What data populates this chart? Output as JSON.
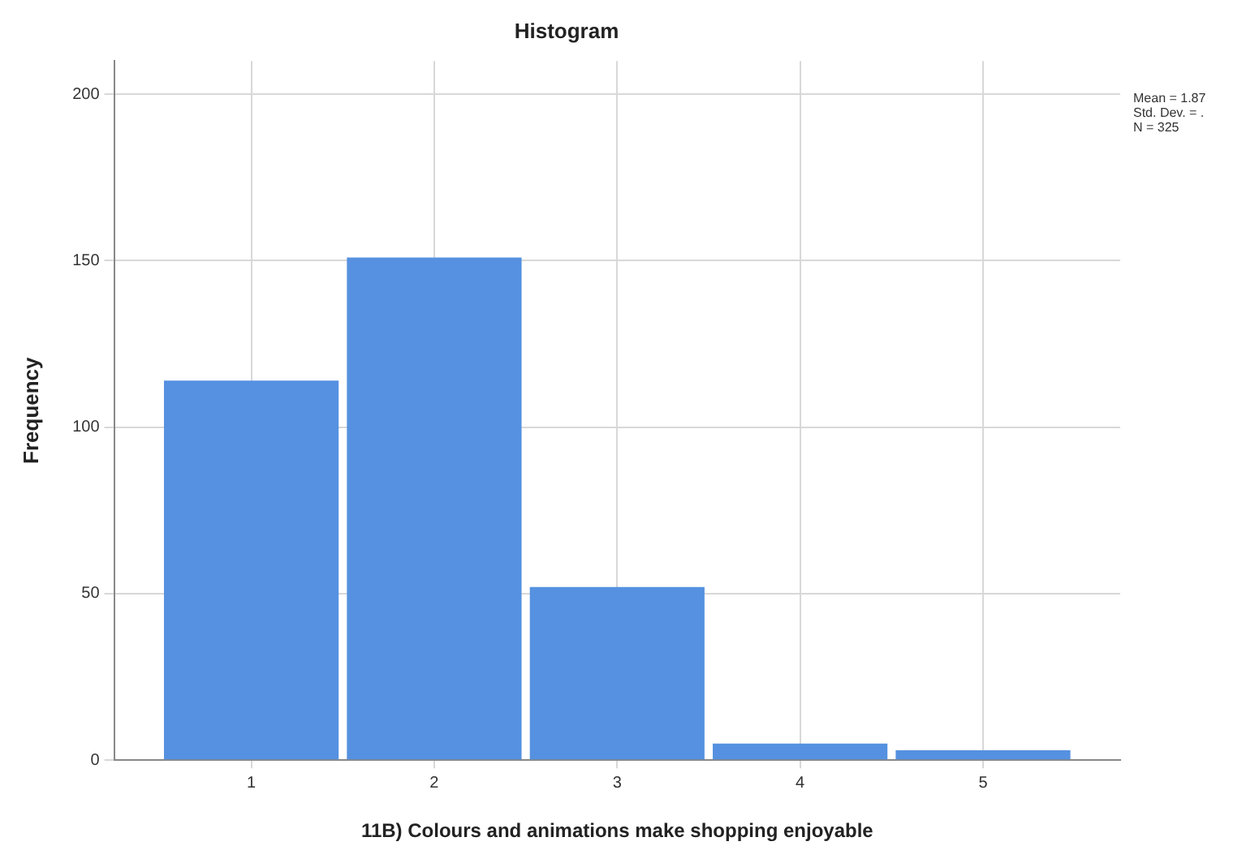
{
  "chart_data": {
    "type": "histogram",
    "title": "Histogram",
    "xlabel": "11B) Colours and animations make shopping enjoyable",
    "ylabel": "Frequency",
    "bins": [
      0.5,
      1.5,
      2.5,
      3.5,
      4.5,
      5.5
    ],
    "values": [
      114,
      151,
      52,
      5,
      3
    ],
    "color": "#5591e0",
    "xlim": [
      0.25,
      5.75
    ],
    "xticks": [
      1,
      2,
      3,
      4,
      5
    ],
    "ylim": [
      0,
      210
    ],
    "yticks": [
      0,
      50,
      100,
      150,
      200
    ],
    "grid": true,
    "legend": false,
    "annotations": [
      "Mean = 1.87",
      "Std. Dev. = .",
      "N = 325"
    ]
  }
}
